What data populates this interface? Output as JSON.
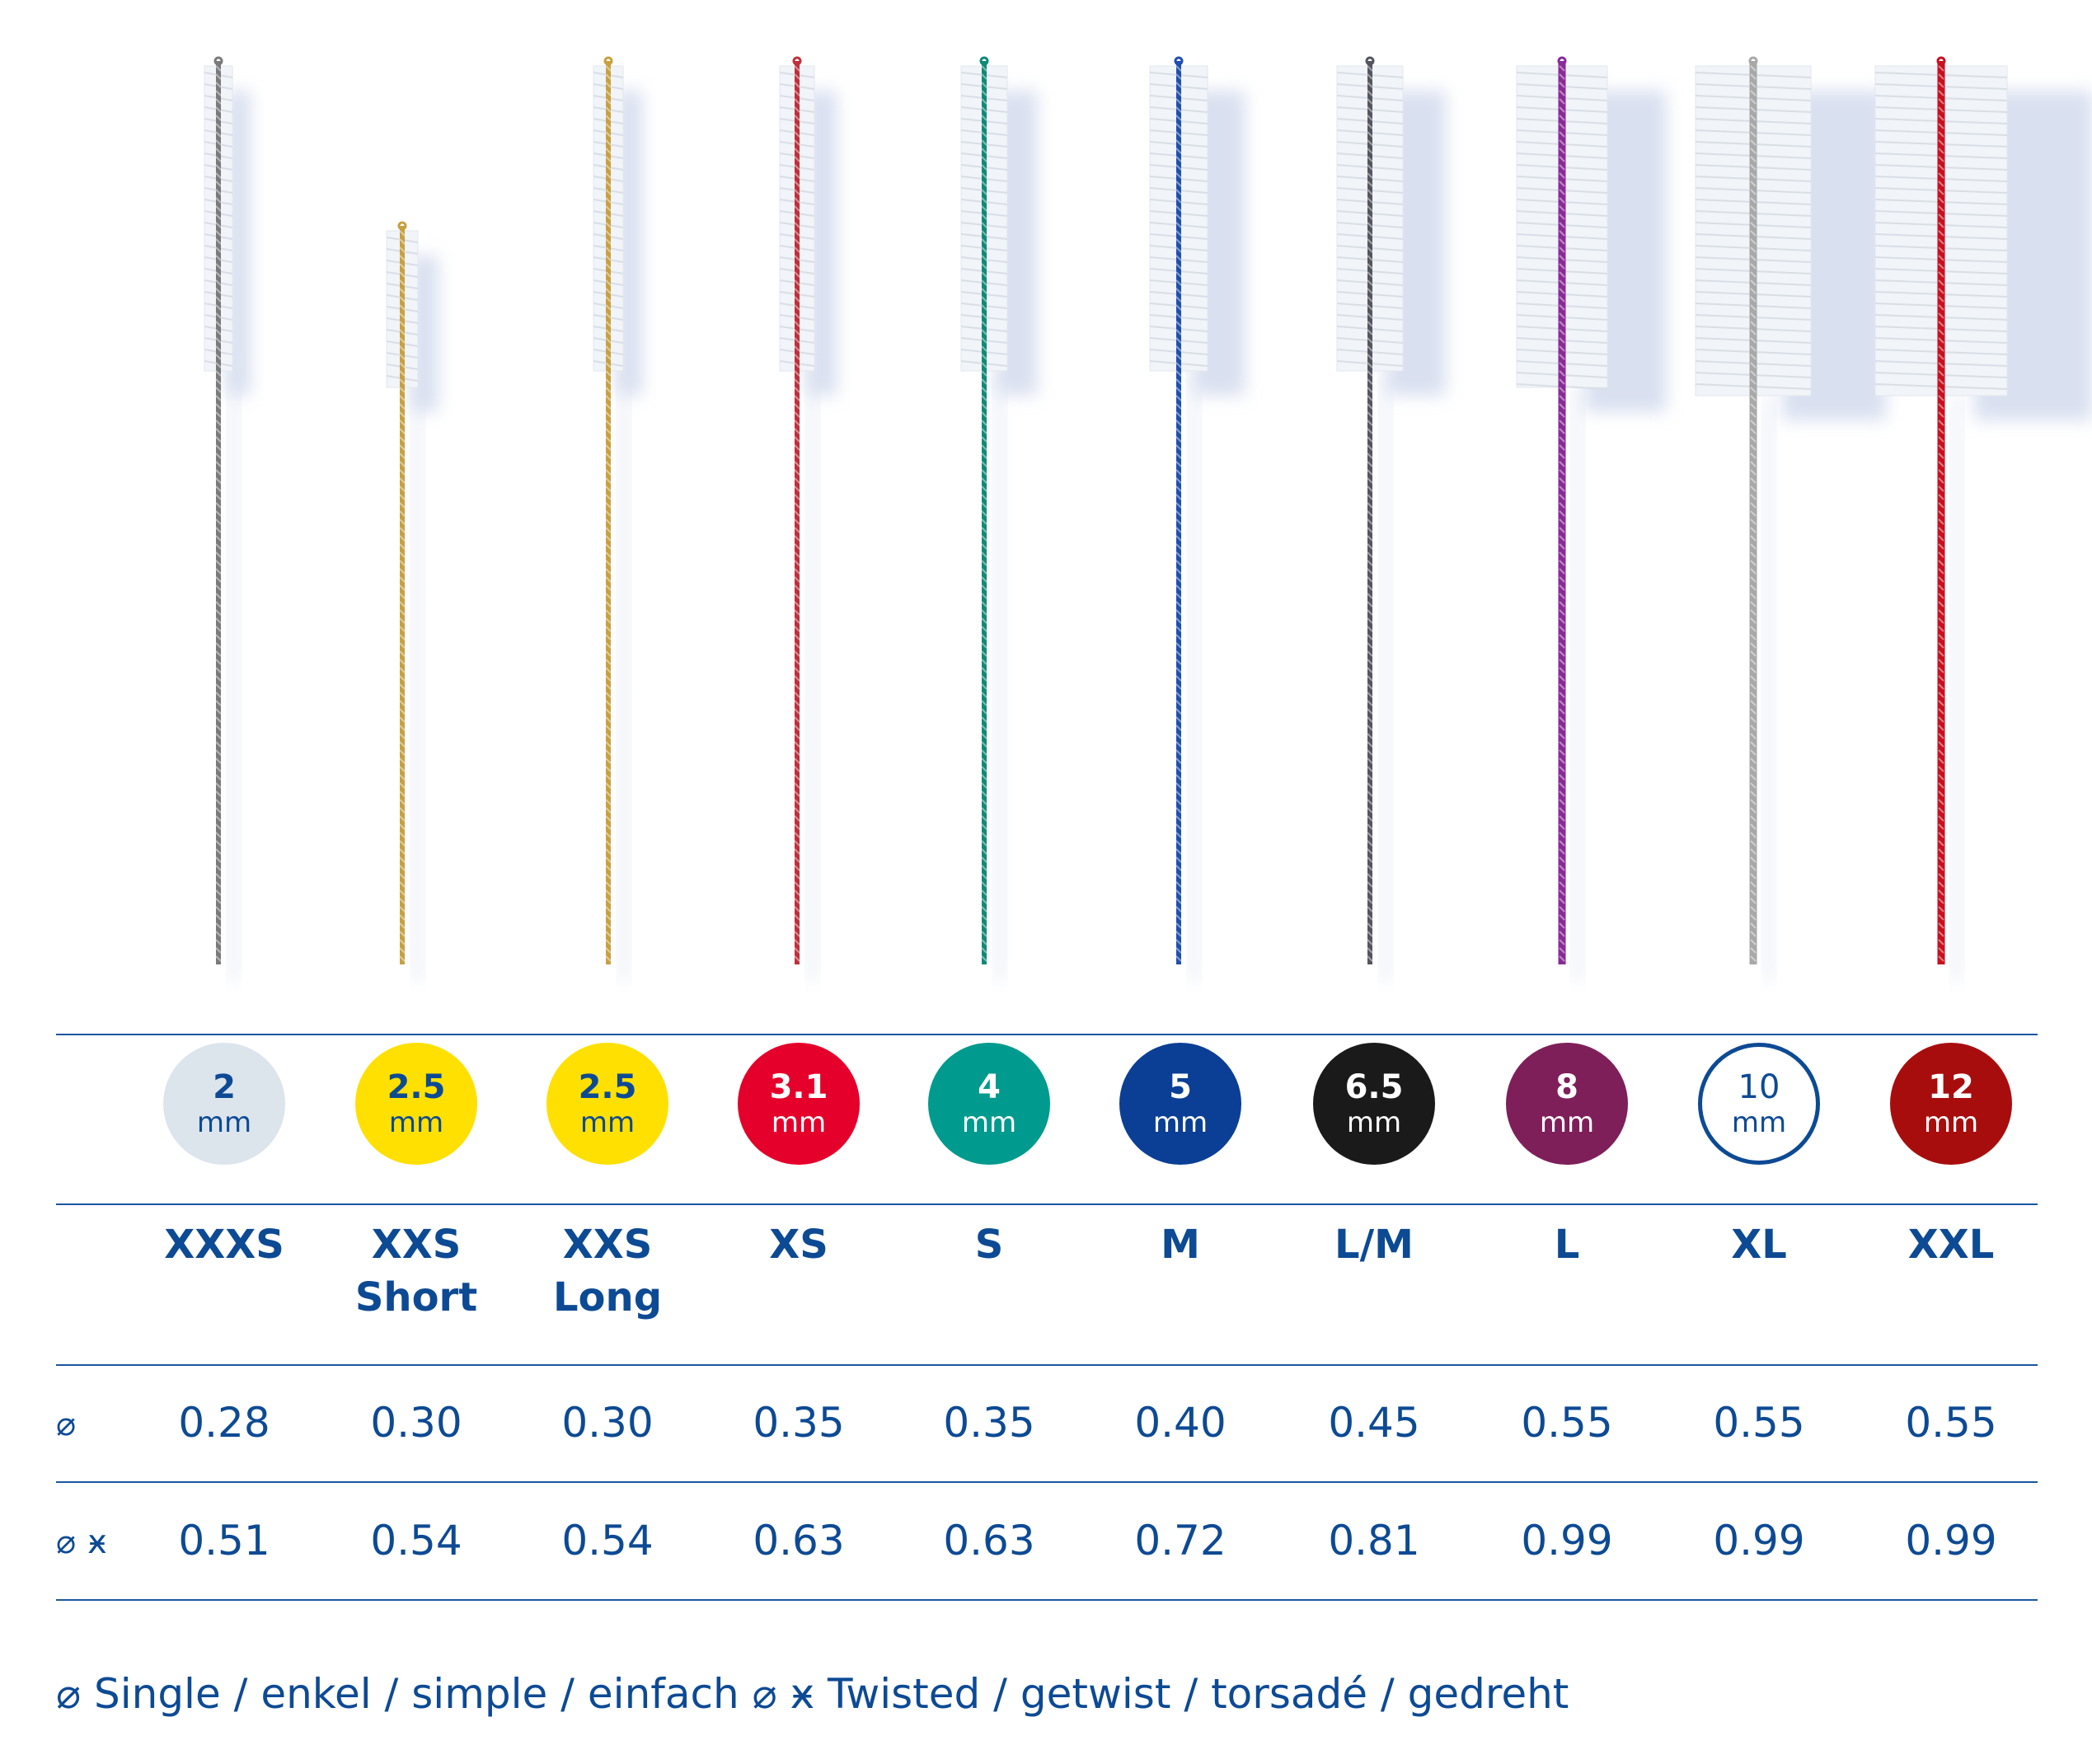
{
  "symbols": {
    "single": "⌀",
    "twisted": "ӿ"
  },
  "items": [
    {
      "size": "XXXS",
      "size2": "",
      "diameter": "2",
      "unit": "mm",
      "circle_fill": "#dce4ec",
      "circle_text": "#0d4a94",
      "wire_color": "#7a7a7a",
      "single": "0.28",
      "twisted": "0.51"
    },
    {
      "size": "XXS",
      "size2": "Short",
      "diameter": "2.5",
      "unit": "mm",
      "circle_fill": "#ffe000",
      "circle_text": "#0d4a94",
      "wire_color": "#c8a040",
      "single": "0.30",
      "twisted": "0.54"
    },
    {
      "size": "XXS",
      "size2": "Long",
      "diameter": "2.5",
      "unit": "mm",
      "circle_fill": "#ffe000",
      "circle_text": "#0d4a94",
      "wire_color": "#c8a040",
      "single": "0.30",
      "twisted": "0.54"
    },
    {
      "size": "XS",
      "size2": "",
      "diameter": "3.1",
      "unit": "mm",
      "circle_fill": "#e5002b",
      "circle_text": "#ffffff",
      "wire_color": "#c0303c",
      "single": "0.35",
      "twisted": "0.63"
    },
    {
      "size": "S",
      "size2": "",
      "diameter": "4",
      "unit": "mm",
      "circle_fill": "#009a8e",
      "circle_text": "#ffffff",
      "wire_color": "#0f8a78",
      "single": "0.35",
      "twisted": "0.63"
    },
    {
      "size": "M",
      "size2": "",
      "diameter": "5",
      "unit": "mm",
      "circle_fill": "#0a3f95",
      "circle_text": "#ffffff",
      "wire_color": "#1f4fb0",
      "single": "0.40",
      "twisted": "0.72"
    },
    {
      "size": "L/M",
      "size2": "",
      "diameter": "6.5",
      "unit": "mm",
      "circle_fill": "#1a1a1a",
      "circle_text": "#ffffff",
      "wire_color": "#555560",
      "single": "0.45",
      "twisted": "0.81"
    },
    {
      "size": "L",
      "size2": "",
      "diameter": "8",
      "unit": "mm",
      "circle_fill": "#7e1f5a",
      "circle_text": "#ffffff",
      "wire_color": "#8a2a9a",
      "single": "0.55",
      "twisted": "0.99"
    },
    {
      "size": "XL",
      "size2": "",
      "diameter": "10",
      "unit": "mm",
      "circle_fill": "#ffffff",
      "circle_text": "#0d4a94",
      "circle_border": "#0d4a94",
      "wire_color": "#a8a8a8",
      "single": "0.55",
      "twisted": "0.99"
    },
    {
      "size": "XXL",
      "size2": "",
      "diameter": "12",
      "unit": "mm",
      "circle_fill": "#a80d0d",
      "circle_text": "#ffffff",
      "wire_color": "#c81020",
      "single": "0.55",
      "twisted": "0.99"
    }
  ],
  "legend": "⌀ Single / enkel / simple / einfach ⌀ ӿ Twisted / getwist / torsadé / gedreht"
}
